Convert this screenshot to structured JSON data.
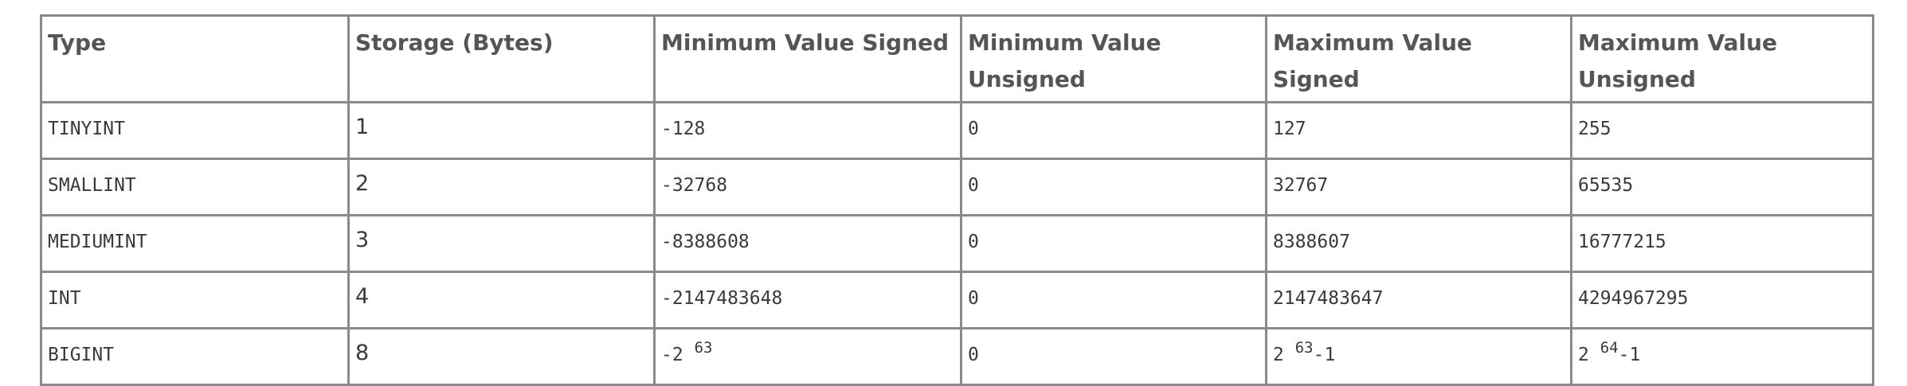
{
  "table": {
    "headers": {
      "type": "Type",
      "storage": "Storage (Bytes)",
      "min_signed": "Minimum Value Signed",
      "min_unsigned": "Minimum Value Unsigned",
      "max_signed": "Maximum Value Signed",
      "max_unsigned": "Maximum Value Unsigned"
    },
    "rows": [
      {
        "type": "TINYINT",
        "storage": "1",
        "min_signed": "-128",
        "min_unsigned": "0",
        "max_signed": "127",
        "max_unsigned": "255"
      },
      {
        "type": "SMALLINT",
        "storage": "2",
        "min_signed": "-32768",
        "min_unsigned": "0",
        "max_signed": "32767",
        "max_unsigned": "65535"
      },
      {
        "type": "MEDIUMINT",
        "storage": "3",
        "min_signed": "-8388608",
        "min_unsigned": "0",
        "max_signed": "8388607",
        "max_unsigned": "16777215"
      },
      {
        "type": "INT",
        "storage": "4",
        "min_signed": "-2147483648",
        "min_unsigned": "0",
        "max_signed": "2147483647",
        "max_unsigned": "4294967295"
      },
      {
        "type": "BIGINT",
        "storage": "8",
        "min_signed": {
          "base": "-2",
          "exp": "63",
          "suffix": ""
        },
        "min_unsigned": "0",
        "max_signed": {
          "base": "2",
          "exp": "63",
          "suffix": "-1"
        },
        "max_unsigned": {
          "base": "2",
          "exp": "64",
          "suffix": "-1"
        }
      }
    ]
  }
}
